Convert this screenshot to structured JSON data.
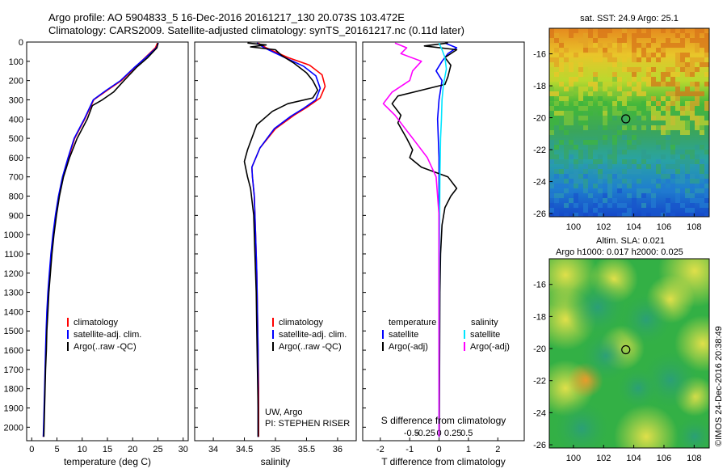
{
  "header": {
    "line1": "Argo profile: AO 5904833_5 16-Dec-2016 20161217_130 20.073S 103.472E",
    "line2": "Climatology: CARS2009. Satellite-adjusted climatology: synTS_20161217.nc (0.11d later)"
  },
  "colors": {
    "climatology": "#ff0000",
    "satellite": "#0000ff",
    "argo": "#000000",
    "sat_salinity": "#00e5ff",
    "argo_salinity": "#ff00ff"
  },
  "chart_data": [
    {
      "type": "line",
      "id": "temperature",
      "xlabel": "temperature (deg C)",
      "ylabel": "",
      "xlim": [
        -1,
        31
      ],
      "ylim": [
        0,
        2070
      ],
      "xticks": [
        0,
        5,
        10,
        15,
        20,
        25,
        30
      ],
      "yticks": [
        0,
        100,
        200,
        300,
        400,
        500,
        600,
        700,
        800,
        900,
        1000,
        1100,
        1200,
        1300,
        1400,
        1500,
        1600,
        1700,
        1800,
        1900,
        2000
      ],
      "legend": [
        "climatology",
        "satellite-adj. clim.",
        "Argo(..raw -QC)"
      ],
      "series": [
        {
          "name": "climatology",
          "color": "#ff0000",
          "points": [
            [
              24.9,
              5
            ],
            [
              24.5,
              30
            ],
            [
              22.5,
              80
            ],
            [
              20.5,
              130
            ],
            [
              17.8,
              200
            ],
            [
              15.0,
              250
            ],
            [
              12.3,
              300
            ],
            [
              10.5,
              400
            ],
            [
              8.5,
              500
            ],
            [
              7.3,
              600
            ],
            [
              6.2,
              700
            ],
            [
              5.4,
              800
            ],
            [
              4.8,
              900
            ],
            [
              4.3,
              1000
            ],
            [
              3.9,
              1100
            ],
            [
              3.6,
              1200
            ],
            [
              3.3,
              1300
            ],
            [
              3.1,
              1400
            ],
            [
              2.9,
              1500
            ],
            [
              2.8,
              1600
            ],
            [
              2.7,
              1700
            ],
            [
              2.6,
              1800
            ],
            [
              2.5,
              1900
            ],
            [
              2.4,
              2000
            ],
            [
              2.3,
              2050
            ]
          ]
        },
        {
          "name": "satellite-adj. clim.",
          "color": "#0000ff",
          "points": [
            [
              25.1,
              5
            ],
            [
              24.7,
              30
            ],
            [
              22.6,
              80
            ],
            [
              20.4,
              130
            ],
            [
              17.6,
              200
            ],
            [
              14.8,
              250
            ],
            [
              12.2,
              300
            ],
            [
              10.4,
              400
            ],
            [
              8.4,
              500
            ],
            [
              7.2,
              600
            ],
            [
              6.1,
              700
            ],
            [
              5.3,
              800
            ],
            [
              4.7,
              900
            ],
            [
              4.2,
              1000
            ],
            [
              3.8,
              1100
            ],
            [
              3.5,
              1200
            ],
            [
              3.2,
              1300
            ],
            [
              3.0,
              1400
            ],
            [
              2.85,
              1500
            ],
            [
              2.75,
              1600
            ],
            [
              2.65,
              1700
            ],
            [
              2.55,
              1800
            ],
            [
              2.45,
              1900
            ],
            [
              2.35,
              2000
            ],
            [
              2.3,
              2050
            ]
          ]
        },
        {
          "name": "Argo(..raw -QC)",
          "color": "#000000",
          "points": [
            [
              25.0,
              5
            ],
            [
              24.8,
              30
            ],
            [
              23.0,
              80
            ],
            [
              20.8,
              130
            ],
            [
              18.3,
              200
            ],
            [
              16.2,
              260
            ],
            [
              14.0,
              300
            ],
            [
              12.0,
              330
            ],
            [
              11.0,
              400
            ],
            [
              9.0,
              500
            ],
            [
              7.5,
              600
            ],
            [
              6.3,
              700
            ],
            [
              5.5,
              800
            ],
            [
              4.9,
              900
            ],
            [
              4.4,
              1000
            ],
            [
              4.0,
              1100
            ],
            [
              3.7,
              1200
            ],
            [
              3.4,
              1300
            ],
            [
              3.2,
              1400
            ],
            [
              3.0,
              1500
            ],
            [
              2.9,
              1600
            ],
            [
              2.75,
              1700
            ],
            [
              2.65,
              1800
            ],
            [
              2.55,
              1900
            ],
            [
              2.45,
              2000
            ],
            [
              2.4,
              2050
            ]
          ]
        }
      ]
    },
    {
      "type": "line",
      "id": "salinity",
      "xlabel": "salinity",
      "xlim": [
        33.7,
        36.3
      ],
      "ylim": [
        0,
        2070
      ],
      "xticks": [
        34,
        34.5,
        35,
        35.5,
        36
      ],
      "xticklabels": [
        "34",
        "34.5",
        "35",
        "35.5",
        "36"
      ],
      "legend": [
        "climatology",
        "satellite-adj. clim.",
        "Argo(..raw -QC)"
      ],
      "annotation": [
        "UW, Argo",
        "PI: STEPHEN RISER"
      ],
      "series": [
        {
          "name": "climatology",
          "color": "#ff0000",
          "points": [
            [
              34.72,
              5
            ],
            [
              34.85,
              30
            ],
            [
              35.2,
              80
            ],
            [
              35.55,
              120
            ],
            [
              35.75,
              170
            ],
            [
              35.8,
              230
            ],
            [
              35.72,
              290
            ],
            [
              35.5,
              340
            ],
            [
              35.3,
              380
            ],
            [
              35.0,
              450
            ],
            [
              34.75,
              550
            ],
            [
              34.62,
              650
            ],
            [
              34.63,
              700
            ],
            [
              34.66,
              800
            ],
            [
              34.68,
              1000
            ],
            [
              34.7,
              1200
            ],
            [
              34.71,
              1400
            ],
            [
              34.72,
              1600
            ],
            [
              34.73,
              1800
            ],
            [
              34.73,
              2000
            ],
            [
              34.73,
              2050
            ]
          ]
        },
        {
          "name": "satellite-adj. clim.",
          "color": "#0000ff",
          "points": [
            [
              34.7,
              5
            ],
            [
              34.82,
              30
            ],
            [
              35.15,
              80
            ],
            [
              35.45,
              125
            ],
            [
              35.65,
              175
            ],
            [
              35.72,
              240
            ],
            [
              35.65,
              300
            ],
            [
              35.45,
              345
            ],
            [
              35.25,
              385
            ],
            [
              34.98,
              450
            ],
            [
              34.75,
              550
            ],
            [
              34.62,
              650
            ],
            [
              34.63,
              700
            ],
            [
              34.66,
              800
            ],
            [
              34.68,
              1000
            ],
            [
              34.7,
              1200
            ],
            [
              34.71,
              1400
            ],
            [
              34.72,
              1600
            ],
            [
              34.72,
              1800
            ],
            [
              34.72,
              2000
            ],
            [
              34.72,
              2050
            ]
          ]
        },
        {
          "name": "Argo(..raw -QC)",
          "color": "#000000",
          "points": [
            [
              34.55,
              5
            ],
            [
              34.85,
              15
            ],
            [
              34.6,
              25
            ],
            [
              35.0,
              40
            ],
            [
              35.1,
              70
            ],
            [
              35.3,
              110
            ],
            [
              35.5,
              160
            ],
            [
              35.6,
              200
            ],
            [
              35.68,
              250
            ],
            [
              35.6,
              290
            ],
            [
              35.2,
              320
            ],
            [
              34.95,
              360
            ],
            [
              34.7,
              430
            ],
            [
              34.55,
              560
            ],
            [
              34.5,
              620
            ],
            [
              34.55,
              700
            ],
            [
              34.6,
              760
            ],
            [
              34.65,
              900
            ],
            [
              34.67,
              1100
            ],
            [
              34.69,
              1300
            ],
            [
              34.7,
              1500
            ],
            [
              34.71,
              1700
            ],
            [
              34.72,
              1900
            ],
            [
              34.72,
              2050
            ]
          ]
        }
      ]
    },
    {
      "type": "line",
      "id": "difference",
      "xlabel": "T difference from climatology",
      "x2label": "S difference from climatology",
      "xlim": [
        -2.6,
        2.9
      ],
      "ylim": [
        0,
        2070
      ],
      "xticks": [
        -2,
        -1,
        0,
        1,
        2
      ],
      "x2ticks": [
        -0.5,
        -0.25,
        0,
        0.25,
        0.5
      ],
      "x2ticklabels": [
        "-0.5",
        "-0.25",
        "0",
        "0.25",
        "0.5"
      ],
      "legend_left_title": "temperature",
      "legend_right_title": "salinity",
      "legend": [
        "satellite",
        "Argo(-adj)",
        "satellite",
        "Argo(-adj)"
      ],
      "series": [
        {
          "name": "T satellite",
          "color": "#0000ff",
          "points": [
            [
              0.2,
              5
            ],
            [
              0.6,
              30
            ],
            [
              0.3,
              60
            ],
            [
              0.1,
              100
            ],
            [
              -0.1,
              150
            ],
            [
              0.1,
              200
            ],
            [
              0.0,
              300
            ],
            [
              -0.05,
              400
            ],
            [
              0.0,
              600
            ],
            [
              0.0,
              800
            ],
            [
              0.0,
              1000
            ],
            [
              0.0,
              1400
            ],
            [
              0.0,
              1800
            ],
            [
              0.0,
              2050
            ]
          ]
        },
        {
          "name": "T Argo(-adj)",
          "color": "#000000",
          "points": [
            [
              0.3,
              5
            ],
            [
              -0.5,
              20
            ],
            [
              0.6,
              40
            ],
            [
              0.2,
              80
            ],
            [
              0.4,
              120
            ],
            [
              0.3,
              180
            ],
            [
              0.2,
              220
            ],
            [
              -1.4,
              280
            ],
            [
              -1.6,
              320
            ],
            [
              -1.3,
              380
            ],
            [
              -1.4,
              420
            ],
            [
              -1.1,
              500
            ],
            [
              -0.9,
              560
            ],
            [
              -1.0,
              600
            ],
            [
              -0.6,
              650
            ],
            [
              0.3,
              700
            ],
            [
              0.6,
              760
            ],
            [
              0.4,
              800
            ],
            [
              0.2,
              860
            ],
            [
              0.1,
              950
            ],
            [
              0.05,
              1100
            ],
            [
              0.03,
              1300
            ],
            [
              0.02,
              1600
            ],
            [
              0.01,
              2050
            ]
          ]
        },
        {
          "name": "S satellite",
          "color": "#00e5ff",
          "points": [
            [
              0.0,
              5
            ],
            [
              0.1,
              40
            ],
            [
              0.2,
              80
            ],
            [
              0.25,
              140
            ],
            [
              0.15,
              220
            ],
            [
              0.1,
              300
            ],
            [
              0.08,
              400
            ],
            [
              0.05,
              500
            ],
            [
              0.03,
              700
            ],
            [
              0.02,
              900
            ],
            [
              0.01,
              1200
            ],
            [
              0.0,
              2050
            ]
          ]
        },
        {
          "name": "S Argo(-adj)",
          "color": "#ff00ff",
          "points": [
            [
              -1.5,
              5
            ],
            [
              -1.1,
              30
            ],
            [
              -1.3,
              60
            ],
            [
              -0.6,
              100
            ],
            [
              -0.9,
              150
            ],
            [
              -1.0,
              200
            ],
            [
              -1.6,
              260
            ],
            [
              -1.9,
              320
            ],
            [
              -1.5,
              380
            ],
            [
              -1.2,
              440
            ],
            [
              -0.8,
              520
            ],
            [
              -0.4,
              600
            ],
            [
              -0.1,
              700
            ],
            [
              0.0,
              900
            ],
            [
              0.0,
              1200
            ],
            [
              0.0,
              2050
            ]
          ]
        }
      ]
    },
    {
      "type": "heatmap",
      "id": "sst-map",
      "title": "sat. SST: 24.9 Argo: 25.1",
      "xlim": [
        98.4,
        109.0
      ],
      "ylim": [
        -26.2,
        -14.4
      ],
      "xticks": [
        100,
        102,
        104,
        106,
        108
      ],
      "yticks": [
        -16,
        -18,
        -20,
        -22,
        -24,
        -26
      ],
      "marker": {
        "lon": 103.472,
        "lat": -20.073
      }
    },
    {
      "type": "heatmap",
      "id": "sla-map",
      "title": "Altim. SLA: 0.021",
      "subtitle": "Argo h1000: 0.017 h2000: 0.025",
      "xlim": [
        98.4,
        109.0
      ],
      "ylim": [
        -26.2,
        -14.4
      ],
      "xticks": [
        100,
        102,
        104,
        106,
        108
      ],
      "yticks": [
        -16,
        -18,
        -20,
        -22,
        -24,
        -26
      ],
      "marker": {
        "lon": 103.472,
        "lat": -20.073
      },
      "side_label": "©IMOS 24-Dec-2016 20:38:49"
    }
  ]
}
